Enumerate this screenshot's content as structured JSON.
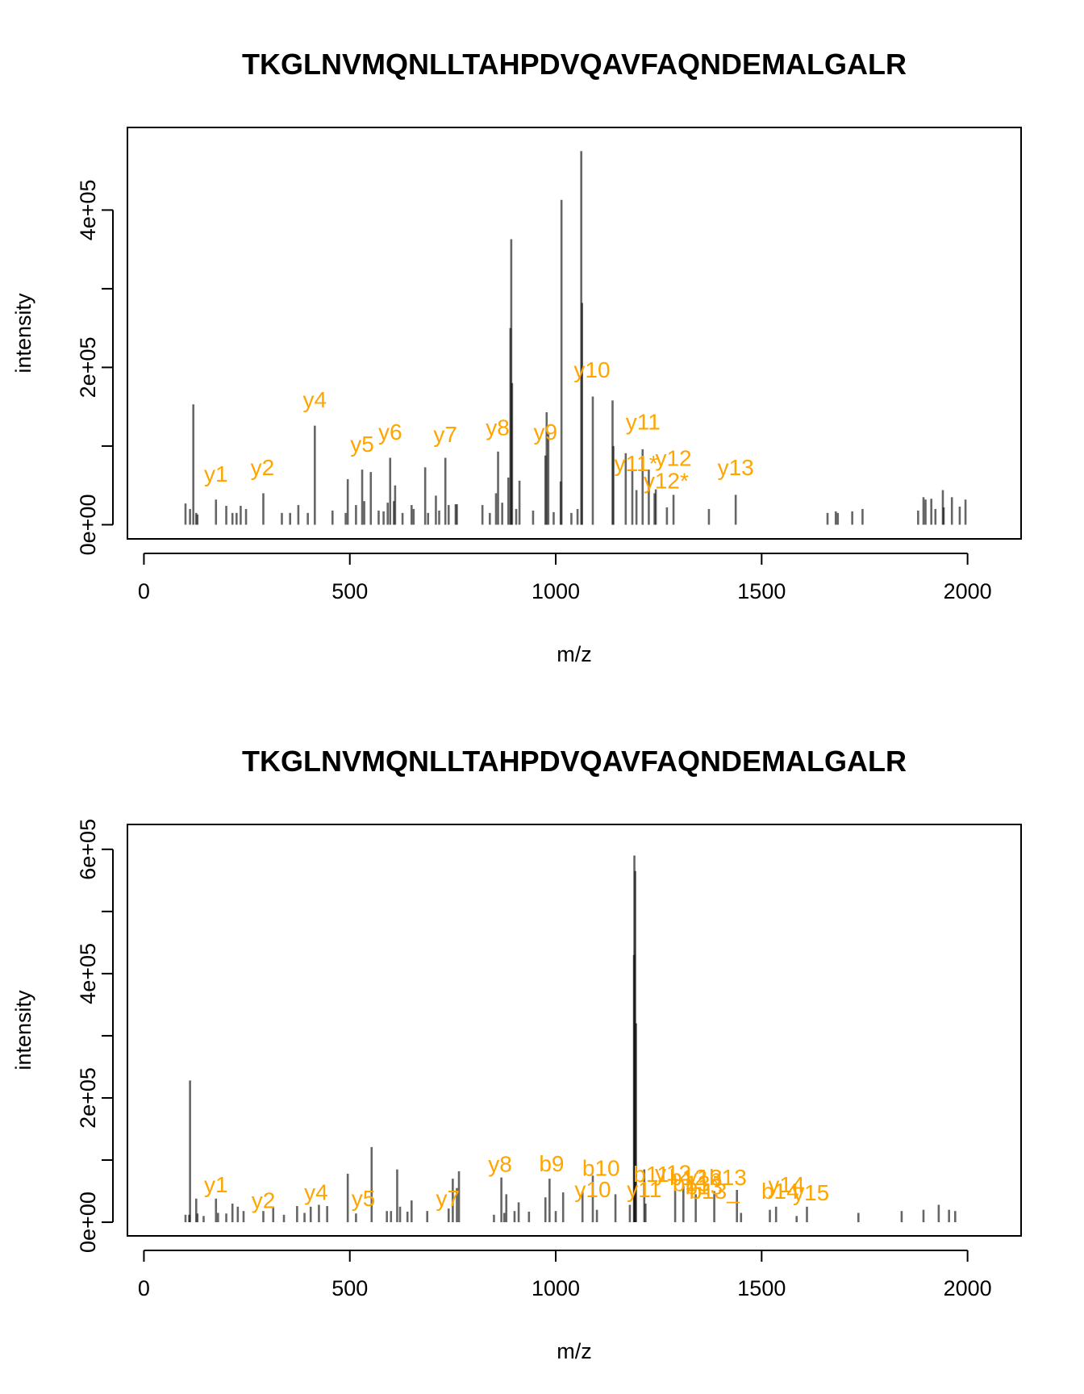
{
  "chart_data": [
    {
      "type": "bar",
      "title": "TKGLNVMQNLLTAHPDVQAVFAQNDEMALGALR",
      "xlabel": "m/z",
      "ylabel": "intensity",
      "xlim": [
        -40,
        2130
      ],
      "ylim": [
        -18000,
        505000
      ],
      "xticks": [
        0,
        500,
        1000,
        1500,
        2000
      ],
      "xtick_labels": [
        "0",
        "500",
        "1000",
        "1500",
        "2000"
      ],
      "yticks": [
        0,
        100000,
        200000,
        300000,
        400000
      ],
      "ytick_labels": [
        "0e+00",
        "2e+05",
        "4e+05"
      ],
      "bar_color": "#000000",
      "label_color": "#FFA500",
      "peaks": {
        "mz": [
          101,
          112,
          120,
          127,
          130,
          175,
          200,
          215,
          225,
          235,
          248,
          290,
          335,
          355,
          375,
          398,
          415,
          458,
          490,
          495,
          515,
          530,
          535,
          551,
          570,
          582,
          592,
          598,
          607,
          610,
          628,
          650,
          655,
          683,
          690,
          709,
          717,
          732,
          740,
          757,
          760,
          822,
          840,
          855,
          860,
          870,
          885,
          890,
          892,
          894,
          904,
          912,
          945,
          975,
          978,
          982,
          995,
          1012,
          1014,
          1038,
          1053,
          1062,
          1064,
          1090,
          1138,
          1140,
          1170,
          1186,
          1196,
          1211,
          1226,
          1240,
          1243,
          1270,
          1286,
          1372,
          1437,
          1660,
          1680,
          1685,
          1720,
          1745,
          1880,
          1893,
          1898,
          1912,
          1922,
          1940,
          1942,
          1962,
          1981,
          1995
        ],
        "intensity": [
          27000,
          20000,
          153000,
          15000,
          13000,
          32000,
          24000,
          15000,
          15000,
          24000,
          20000,
          40000,
          15000,
          15000,
          25000,
          15000,
          126000,
          18000,
          15000,
          58000,
          25000,
          70000,
          30000,
          67000,
          18000,
          17000,
          28000,
          85000,
          30000,
          50000,
          15000,
          25000,
          20000,
          73000,
          15000,
          37000,
          18000,
          85000,
          25000,
          26000,
          26000,
          25000,
          15000,
          40000,
          93000,
          28000,
          60000,
          250000,
          363000,
          180000,
          20000,
          56000,
          18000,
          88000,
          143000,
          115000,
          16000,
          55000,
          413000,
          15000,
          20000,
          475000,
          282000,
          163000,
          158000,
          100000,
          91000,
          70000,
          44000,
          96000,
          70000,
          40000,
          45000,
          22000,
          38000,
          20000,
          38000,
          15000,
          17000,
          15000,
          17000,
          20000,
          18000,
          35000,
          32000,
          33000,
          20000,
          44000,
          22000,
          35000,
          23000,
          32000
        ]
      },
      "annotations": [
        {
          "label": "y1",
          "mz": 175,
          "y": 55000
        },
        {
          "label": "y2",
          "mz": 288,
          "y": 63000
        },
        {
          "label": "y4",
          "mz": 415,
          "y": 149000
        },
        {
          "label": "y5",
          "mz": 530,
          "y": 93000
        },
        {
          "label": "y6",
          "mz": 598,
          "y": 108000
        },
        {
          "label": "y7",
          "mz": 732,
          "y": 105000
        },
        {
          "label": "y8",
          "mz": 859,
          "y": 114000
        },
        {
          "label": "y9",
          "mz": 975,
          "y": 108000
        },
        {
          "label": "y10",
          "mz": 1088,
          "y": 187000
        },
        {
          "label": "y11",
          "mz": 1212,
          "y": 121000
        },
        {
          "label": "y11*",
          "mz": 1195,
          "y": 68000
        },
        {
          "label": "y12",
          "mz": 1286,
          "y": 75000
        },
        {
          "label": "y12*",
          "mz": 1268,
          "y": 46000
        },
        {
          "label": "y13",
          "mz": 1437,
          "y": 63000
        }
      ]
    },
    {
      "type": "bar",
      "title": "TKGLNVMQNLLTAHPDVQAVFAQNDEMALGALR",
      "xlabel": "m/z",
      "ylabel": "intensity",
      "xlim": [
        -40,
        2130
      ],
      "ylim": [
        -22000,
        640000
      ],
      "xticks": [
        0,
        500,
        1000,
        1500,
        2000
      ],
      "xtick_labels": [
        "0",
        "500",
        "1000",
        "1500",
        "2000"
      ],
      "yticks": [
        0,
        100000,
        200000,
        300000,
        400000,
        500000,
        600000
      ],
      "ytick_labels": [
        "0e+00",
        "2e+05",
        "4e+05",
        "6e+05"
      ],
      "bar_color": "#000000",
      "label_color": "#FFA500",
      "peaks": {
        "mz": [
          101,
          110,
          112,
          127,
          130,
          145,
          175,
          180,
          200,
          215,
          228,
          242,
          290,
          314,
          340,
          372,
          390,
          405,
          425,
          445,
          495,
          515,
          553,
          590,
          600,
          615,
          622,
          640,
          650,
          688,
          740,
          750,
          760,
          765,
          850,
          868,
          875,
          880,
          900,
          910,
          935,
          975,
          985,
          1000,
          1018,
          1065,
          1090,
          1100,
          1145,
          1180,
          1190,
          1191,
          1193,
          1195,
          1215,
          1218,
          1290,
          1310,
          1340,
          1385,
          1440,
          1450,
          1520,
          1535,
          1585,
          1610,
          1735,
          1840,
          1893,
          1930,
          1955,
          1970
        ],
        "intensity": [
          12000,
          12000,
          228000,
          38000,
          14000,
          10000,
          38000,
          15000,
          14000,
          30000,
          25000,
          18000,
          18000,
          25000,
          12000,
          26000,
          15000,
          25000,
          28000,
          26000,
          78000,
          14000,
          121000,
          18000,
          18000,
          85000,
          25000,
          17000,
          35000,
          18000,
          22000,
          70000,
          55000,
          82000,
          12000,
          72000,
          15000,
          45000,
          18000,
          32000,
          17000,
          40000,
          70000,
          18000,
          48000,
          50000,
          75000,
          20000,
          45000,
          28000,
          430000,
          590000,
          565000,
          320000,
          85000,
          30000,
          52000,
          58000,
          45000,
          50000,
          52000,
          15000,
          20000,
          25000,
          10000,
          25000,
          15000,
          18000,
          20000,
          28000,
          20000,
          18000
        ]
      },
      "annotations": [
        {
          "label": "y1",
          "mz": 175,
          "y": 48000
        },
        {
          "label": "y2",
          "mz": 290,
          "y": 23000
        },
        {
          "label": "y4",
          "mz": 418,
          "y": 36000
        },
        {
          "label": "y5",
          "mz": 533,
          "y": 26000
        },
        {
          "label": "y7",
          "mz": 738,
          "y": 26000
        },
        {
          "label": "y8",
          "mz": 865,
          "y": 81000
        },
        {
          "label": "b9",
          "mz": 990,
          "y": 82000
        },
        {
          "label": "b10",
          "mz": 1110,
          "y": 75000
        },
        {
          "label": "y10",
          "mz": 1090,
          "y": 40000
        },
        {
          "label": "b11",
          "mz": 1232,
          "y": 65000
        },
        {
          "label": "y11",
          "mz": 1215,
          "y": 40000
        },
        {
          "label": "y12",
          "mz": 1285,
          "y": 67000
        },
        {
          "label": "b12",
          "mz": 1322,
          "y": 60000
        },
        {
          "label": "y13",
          "mz": 1360,
          "y": 60000
        },
        {
          "label": "b13*",
          "mz": 1340,
          "y": 50000
        },
        {
          "label": "b13",
          "mz": 1360,
          "y": 45000
        },
        {
          "label": "b13_",
          "mz": 1385,
          "y": 38000
        },
        {
          "label": "b13",
          "mz": 1418,
          "y": 60000
        },
        {
          "label": "b14",
          "mz": 1545,
          "y": 38000
        },
        {
          "label": "y14",
          "mz": 1560,
          "y": 48000
        },
        {
          "label": "y15",
          "mz": 1620,
          "y": 35000
        }
      ]
    }
  ]
}
